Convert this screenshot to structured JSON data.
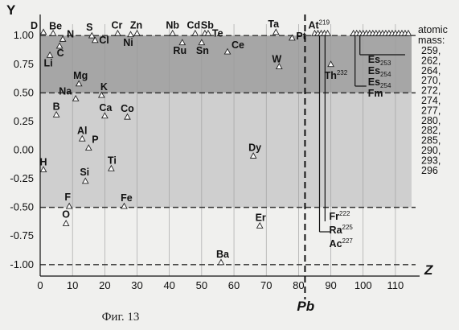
{
  "caption": "Фиг. 13",
  "chart_data": {
    "type": "scatter",
    "title": "",
    "xlabel": "Z",
    "ylabel": "Y",
    "xlim": [
      0,
      115
    ],
    "ylim": [
      -1.1,
      1.1
    ],
    "x_ticks": [
      0,
      10,
      20,
      30,
      40,
      50,
      60,
      70,
      80,
      90,
      100,
      110
    ],
    "y_ticks": [
      "1.00",
      "0.75",
      "0.50",
      "0.25",
      "0.00",
      "-0.25",
      "-0.50",
      "-0.75",
      "-1.00"
    ],
    "bands": [
      {
        "from": 0.5,
        "to": 1.0,
        "color": "#a6a6a6"
      },
      {
        "from": -0.5,
        "to": 0.5,
        "color": "#cfcfcf"
      }
    ],
    "dashed_lines": [
      1.0,
      0.5,
      -0.5,
      -1.0
    ],
    "vertical_marker": {
      "x": 82,
      "label": "Pb"
    },
    "points": [
      {
        "label": "D",
        "x": 1,
        "y": 1.03
      },
      {
        "label": "Be",
        "x": 4,
        "y": 1.02
      },
      {
        "label": "Li",
        "x": 3,
        "y": 0.83
      },
      {
        "label": "N",
        "x": 7,
        "y": 0.97
      },
      {
        "label": "C",
        "x": 6,
        "y": 0.91
      },
      {
        "label": "S",
        "x": 16,
        "y": 1.0
      },
      {
        "label": "Cl",
        "x": 17,
        "y": 0.96
      },
      {
        "label": "Cr",
        "x": 24,
        "y": 1.02
      },
      {
        "label": "Zn",
        "x": 30,
        "y": 1.02
      },
      {
        "label": "Ni",
        "x": 28,
        "y": 1.01
      },
      {
        "label": "Nb",
        "x": 41,
        "y": 1.02
      },
      {
        "label": "Cd",
        "x": 48,
        "y": 1.02
      },
      {
        "label": "Sb",
        "x": 51,
        "y": 1.02
      },
      {
        "label": "Ru",
        "x": 44,
        "y": 0.94
      },
      {
        "label": "Sn",
        "x": 50,
        "y": 0.94
      },
      {
        "label": "Te",
        "x": 52,
        "y": 1.02
      },
      {
        "label": "Ce",
        "x": 58,
        "y": 0.86
      },
      {
        "label": "Ta",
        "x": 73,
        "y": 1.03
      },
      {
        "label": "Pt",
        "x": 78,
        "y": 0.98
      },
      {
        "label": "W",
        "x": 74,
        "y": 0.73
      },
      {
        "label": "Mg",
        "x": 12,
        "y": 0.58
      },
      {
        "label": "Na",
        "x": 11,
        "y": 0.45
      },
      {
        "label": "K",
        "x": 19,
        "y": 0.48
      },
      {
        "label": "B",
        "x": 5,
        "y": 0.31
      },
      {
        "label": "Ca",
        "x": 20,
        "y": 0.3
      },
      {
        "label": "Co",
        "x": 27,
        "y": 0.29
      },
      {
        "label": "Al",
        "x": 13,
        "y": 0.1
      },
      {
        "label": "P",
        "x": 15,
        "y": 0.02
      },
      {
        "label": "H",
        "x": 1,
        "y": -0.17
      },
      {
        "label": "Ti",
        "x": 22,
        "y": -0.16
      },
      {
        "label": "Si",
        "x": 14,
        "y": -0.27
      },
      {
        "label": "Dy",
        "x": 66,
        "y": -0.05
      },
      {
        "label": "F",
        "x": 9,
        "y": -0.49
      },
      {
        "label": "Fe",
        "x": 26,
        "y": -0.49
      },
      {
        "label": "O",
        "x": 8,
        "y": -0.64
      },
      {
        "label": "Er",
        "x": 68,
        "y": -0.66
      },
      {
        "label": "Ba",
        "x": 56,
        "y": -0.98
      }
    ],
    "superheavy_points": {
      "x": [
        85,
        86,
        87,
        88,
        89,
        97,
        98,
        99,
        100,
        101,
        102,
        103,
        104,
        105,
        106,
        107,
        108,
        109,
        110,
        111,
        112,
        113,
        114
      ],
      "y": 1.02
    },
    "special_labels": [
      {
        "label": "At",
        "mass": "219"
      },
      {
        "label": "Th",
        "mass": "232",
        "x": 90,
        "y": 0.75
      },
      {
        "label": "Fr",
        "mass": "222"
      },
      {
        "label": "Ra",
        "mass": "225"
      },
      {
        "label": "Ac",
        "mass": "227"
      },
      {
        "label": "Es",
        "mass": "253"
      },
      {
        "label": "Es",
        "mass": "254"
      },
      {
        "label": "Es",
        "mass": "254"
      },
      {
        "label": "Fm",
        "mass": ""
      }
    ],
    "atomic_mass_title": "atomic\nmass:",
    "atomic_masses": [
      "259,",
      "262,",
      "264,",
      "270,",
      "272,",
      "274,",
      "277,",
      "280,",
      "282,",
      "285,",
      "290,",
      "293,",
      "296"
    ]
  }
}
